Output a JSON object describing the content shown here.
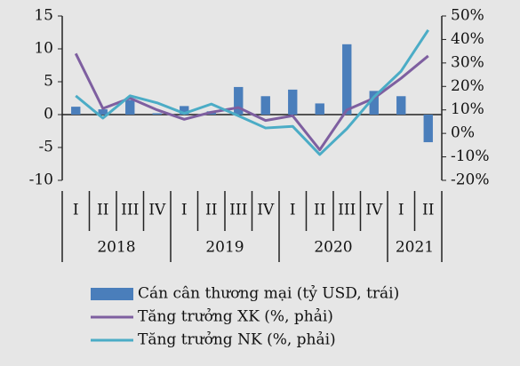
{
  "chart_data": {
    "type": "bar_line",
    "categories": [
      "I",
      "II",
      "III",
      "IV",
      "I",
      "II",
      "III",
      "IV",
      "I",
      "II",
      "III",
      "IV",
      "I",
      "II"
    ],
    "year_groups": [
      {
        "label": "2018",
        "count": 4
      },
      {
        "label": "2019",
        "count": 4
      },
      {
        "label": "2020",
        "count": 4
      },
      {
        "label": "2021",
        "count": 2
      }
    ],
    "series": [
      {
        "name": "Cán cân thương mại (tỷ USD, trái)",
        "color": "#4a7ebb",
        "kind": "bar",
        "axis": "y",
        "values": [
          1.2,
          0.8,
          2.2,
          0.2,
          1.3,
          0.5,
          4.2,
          2.8,
          3.8,
          1.7,
          10.7,
          3.6,
          2.8,
          -4.2
        ]
      },
      {
        "name": "Tăng trưởng XK (%, phải)",
        "color": "#7e5fa0",
        "kind": "line",
        "axis": "y2",
        "values": [
          34,
          10.6,
          15,
          10,
          6,
          9,
          11,
          5.5,
          7.5,
          -7,
          10,
          15,
          23.5,
          33
        ]
      },
      {
        "name": "Tăng trưởng NK (%, phải)",
        "color": "#4bacc6",
        "kind": "line",
        "axis": "y2",
        "values": [
          16,
          6.5,
          16,
          13,
          8.5,
          12.5,
          7.5,
          2.3,
          3,
          -9,
          2,
          15.5,
          26.5,
          44
        ]
      }
    ],
    "ylim": [
      -10,
      15
    ],
    "yticks": [
      -10,
      -5,
      0,
      5,
      10,
      15
    ],
    "y2lim": [
      -20,
      50
    ],
    "y2ticks": [
      {
        "value": -20,
        "label": "-20%"
      },
      {
        "value": -10,
        "label": "-10%"
      },
      {
        "value": 0,
        "label": "0%"
      },
      {
        "value": 10,
        "label": "10%"
      },
      {
        "value": 20,
        "label": "20%"
      },
      {
        "value": 30,
        "label": "30%"
      },
      {
        "value": 40,
        "label": "40%"
      },
      {
        "value": 50,
        "label": "50%"
      }
    ],
    "grid": false
  }
}
